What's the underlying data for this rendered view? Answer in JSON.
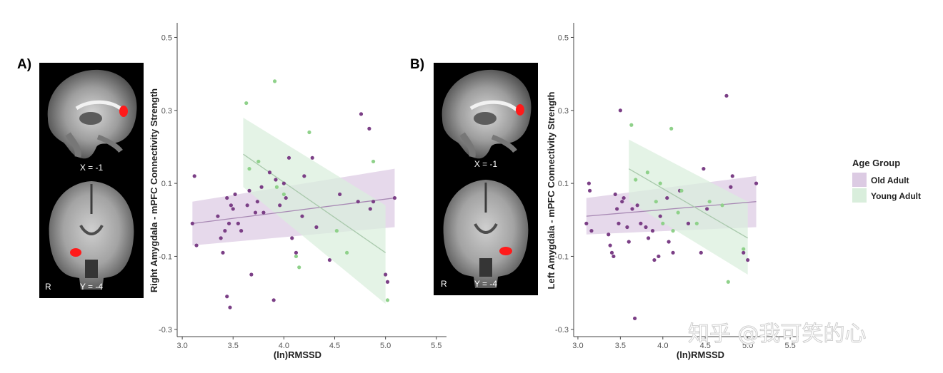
{
  "figure": {
    "panel_labels": [
      "A)",
      "B)"
    ],
    "brain_labels": {
      "sagittal": "X = -1",
      "coronal": "Y = -4",
      "side": "R"
    },
    "legend": {
      "title": "Age Group",
      "items": [
        {
          "label": "Old Adult",
          "color": "#dccbe3"
        },
        {
          "label": "Young Adult",
          "color": "#d9eedc"
        }
      ]
    },
    "watermark": "知乎 @我可笑的心"
  },
  "colors": {
    "old_point": "#7b3f86",
    "young_point": "#8fd18a",
    "old_band": "#dccbe3",
    "young_band": "#d9eedc",
    "old_line": "#a889b4",
    "young_line": "#a9c9ac",
    "red_region": "#ff1a1a"
  },
  "chart_data": [
    {
      "type": "scatter",
      "xlabel": "(ln)RMSSD",
      "ylabel": "Right Amygdala - mPFC Connectivity Strength",
      "xlim": [
        2.95,
        5.6
      ],
      "ylim": [
        -0.32,
        0.54
      ],
      "xticks": [
        3.0,
        3.5,
        4.0,
        4.5,
        5.0,
        5.5
      ],
      "xtick_labels": [
        "3.0",
        "3.5",
        "4.0",
        "4.5",
        "5.0",
        "5.5"
      ],
      "yticks": [
        -0.3,
        -0.1,
        0.1,
        0.3,
        0.5
      ],
      "ytick_labels": [
        "-0.3",
        "-0.1",
        "0.1",
        "0.3",
        "0.5"
      ],
      "series": [
        {
          "group": "Old Adult",
          "points": [
            [
              3.12,
              0.12
            ],
            [
              3.1,
              -0.01
            ],
            [
              3.14,
              -0.07
            ],
            [
              3.35,
              0.01
            ],
            [
              3.38,
              -0.05
            ],
            [
              3.4,
              -0.09
            ],
            [
              3.42,
              -0.03
            ],
            [
              3.44,
              0.06
            ],
            [
              3.46,
              -0.01
            ],
            [
              3.48,
              0.04
            ],
            [
              3.5,
              0.03
            ],
            [
              3.52,
              0.07
            ],
            [
              3.47,
              -0.24
            ],
            [
              3.44,
              -0.21
            ],
            [
              3.55,
              -0.01
            ],
            [
              3.58,
              -0.03
            ],
            [
              3.64,
              0.04
            ],
            [
              3.66,
              0.08
            ],
            [
              3.68,
              -0.15
            ],
            [
              3.72,
              0.02
            ],
            [
              3.74,
              0.05
            ],
            [
              3.78,
              0.09
            ],
            [
              3.8,
              0.02
            ],
            [
              3.86,
              0.13
            ],
            [
              3.9,
              -0.22
            ],
            [
              3.92,
              0.11
            ],
            [
              3.96,
              0.04
            ],
            [
              4.0,
              0.1
            ],
            [
              4.02,
              0.06
            ],
            [
              4.05,
              0.17
            ],
            [
              4.08,
              -0.05
            ],
            [
              4.12,
              -0.09
            ],
            [
              4.18,
              0.01
            ],
            [
              4.2,
              0.12
            ],
            [
              4.28,
              0.17
            ],
            [
              4.32,
              -0.02
            ],
            [
              4.45,
              -0.11
            ],
            [
              4.55,
              0.07
            ],
            [
              4.73,
              0.05
            ],
            [
              4.76,
              0.29
            ],
            [
              4.84,
              0.25
            ],
            [
              4.85,
              0.03
            ],
            [
              4.88,
              0.05
            ],
            [
              5.0,
              -0.15
            ],
            [
              5.02,
              -0.17
            ],
            [
              5.09,
              0.06
            ]
          ],
          "fit": {
            "x": [
              3.1,
              5.09
            ],
            "y": [
              -0.01,
              0.06
            ],
            "ci_low": [
              -0.07,
              -0.02
            ],
            "ci_high": [
              0.05,
              0.14
            ]
          }
        },
        {
          "group": "Young Adult",
          "points": [
            [
              3.63,
              0.32
            ],
            [
              3.66,
              0.14
            ],
            [
              3.75,
              0.16
            ],
            [
              3.91,
              0.38
            ],
            [
              3.93,
              0.09
            ],
            [
              4.0,
              0.07
            ],
            [
              4.12,
              -0.1
            ],
            [
              4.15,
              -0.13
            ],
            [
              4.25,
              0.24
            ],
            [
              4.52,
              -0.03
            ],
            [
              4.62,
              -0.09
            ],
            [
              4.88,
              0.16
            ],
            [
              5.02,
              -0.22
            ]
          ],
          "fit": {
            "x": [
              3.6,
              5.0
            ],
            "y": [
              0.18,
              -0.09
            ],
            "ci_low": [
              0.09,
              -0.23
            ],
            "ci_high": [
              0.28,
              0.04
            ]
          }
        }
      ]
    },
    {
      "type": "scatter",
      "xlabel": "(ln)RMSSD",
      "ylabel": "Left Amygdala - mPFC Connectivity Strength",
      "xlim": [
        2.95,
        5.6
      ],
      "ylim": [
        -0.32,
        0.54
      ],
      "xticks": [
        3.0,
        3.5,
        4.0,
        4.5,
        5.0,
        5.5
      ],
      "xtick_labels": [
        "3.0",
        "3.5",
        "4.0",
        "4.5",
        "5.0",
        "5.5"
      ],
      "yticks": [
        -0.3,
        -0.1,
        0.1,
        0.3,
        0.5
      ],
      "ytick_labels": [
        "-0.3",
        "-0.1",
        "0.1",
        "0.3",
        "0.5"
      ],
      "series": [
        {
          "group": "Old Adult",
          "points": [
            [
              3.1,
              -0.01
            ],
            [
              3.13,
              0.1
            ],
            [
              3.14,
              0.08
            ],
            [
              3.16,
              -0.03
            ],
            [
              3.36,
              -0.04
            ],
            [
              3.38,
              -0.07
            ],
            [
              3.4,
              -0.09
            ],
            [
              3.42,
              -0.1
            ],
            [
              3.44,
              0.07
            ],
            [
              3.46,
              0.03
            ],
            [
              3.48,
              -0.01
            ],
            [
              3.5,
              0.3
            ],
            [
              3.52,
              0.05
            ],
            [
              3.54,
              0.06
            ],
            [
              3.58,
              -0.02
            ],
            [
              3.6,
              -0.06
            ],
            [
              3.64,
              0.03
            ],
            [
              3.67,
              -0.27
            ],
            [
              3.7,
              0.04
            ],
            [
              3.74,
              -0.01
            ],
            [
              3.8,
              -0.02
            ],
            [
              3.83,
              -0.05
            ],
            [
              3.88,
              -0.03
            ],
            [
              3.9,
              -0.11
            ],
            [
              3.95,
              -0.1
            ],
            [
              3.97,
              0.01
            ],
            [
              4.05,
              0.06
            ],
            [
              4.07,
              -0.06
            ],
            [
              4.12,
              -0.09
            ],
            [
              4.2,
              0.08
            ],
            [
              4.3,
              -0.01
            ],
            [
              4.45,
              -0.09
            ],
            [
              4.48,
              0.14
            ],
            [
              4.52,
              0.03
            ],
            [
              4.75,
              0.34
            ],
            [
              4.8,
              0.09
            ],
            [
              4.82,
              0.12
            ],
            [
              4.95,
              -0.09
            ],
            [
              5.0,
              -0.11
            ],
            [
              5.1,
              0.1
            ]
          ],
          "fit": {
            "x": [
              3.1,
              5.1
            ],
            "y": [
              0.01,
              0.05
            ],
            "ci_low": [
              -0.04,
              -0.02
            ],
            "ci_high": [
              0.06,
              0.12
            ]
          }
        },
        {
          "group": "Young Adult",
          "points": [
            [
              3.63,
              0.26
            ],
            [
              3.68,
              0.11
            ],
            [
              3.82,
              0.13
            ],
            [
              3.92,
              0.05
            ],
            [
              3.97,
              0.1
            ],
            [
              4.0,
              -0.01
            ],
            [
              4.1,
              0.25
            ],
            [
              4.12,
              -0.03
            ],
            [
              4.18,
              0.02
            ],
            [
              4.22,
              0.08
            ],
            [
              4.4,
              -0.01
            ],
            [
              4.55,
              0.05
            ],
            [
              4.7,
              0.04
            ],
            [
              4.77,
              -0.17
            ],
            [
              4.95,
              -0.08
            ]
          ],
          "fit": {
            "x": [
              3.6,
              5.0
            ],
            "y": [
              0.14,
              -0.05
            ],
            "ci_low": [
              0.05,
              -0.15
            ],
            "ci_high": [
              0.22,
              0.05
            ]
          }
        }
      ]
    }
  ]
}
